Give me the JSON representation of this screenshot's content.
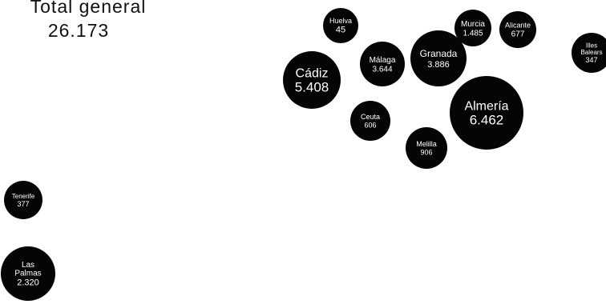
{
  "summary": {
    "label": "Total general",
    "value": "26.173"
  },
  "bubble_fill": "#050505",
  "provinces": [
    {
      "name": "Huelva",
      "value": "45"
    },
    {
      "name": "Murcia",
      "value": "1.485"
    },
    {
      "name": "Alicante",
      "value": "677"
    },
    {
      "name": "Illes Balears",
      "value": "347"
    },
    {
      "name": "Cádiz",
      "value": "5.408"
    },
    {
      "name": "Málaga",
      "value": "3.644"
    },
    {
      "name": "Granada",
      "value": "3.886"
    },
    {
      "name": "Almería",
      "value": "6.462"
    },
    {
      "name": "Ceuta",
      "value": "606"
    },
    {
      "name": "Melilla",
      "value": "906"
    },
    {
      "name": "Tenerife",
      "value": "377"
    },
    {
      "name": "Las Palmas",
      "value": "2.320"
    }
  ]
}
